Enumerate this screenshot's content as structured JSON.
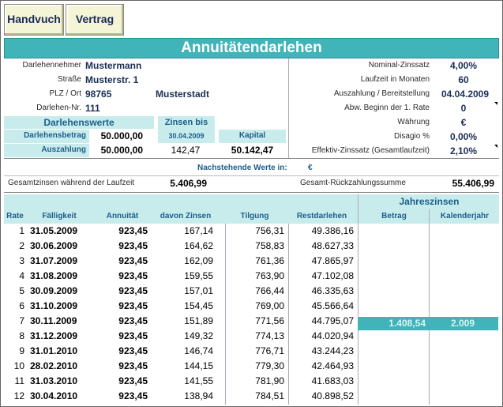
{
  "toolbar": {
    "handbuch_label": "Handvuch",
    "vertrag_label": "Vertrag"
  },
  "title": "Annuitätendarlehen",
  "borrower": {
    "name_label": "Darlehennehmer",
    "name": "Mustermann",
    "street_label": "Straße",
    "street": "Musterstr. 1",
    "city_label": "PLZ / Ort",
    "zip": "98765",
    "city": "Musterstadt",
    "loan_no_label": "Darlehen-Nr.",
    "loan_no": "111"
  },
  "conditions": {
    "rate_label": "Nominal-Zinssatz",
    "rate": "4,00%",
    "term_label": "Laufzeit in Monaten",
    "term": "60",
    "payout_label": "Auszahlung / Bereitstellung",
    "payout_date": "04.04.2009",
    "deviation_label": "Abw. Beginn der 1. Rate",
    "deviation": "0",
    "currency_label": "Währung",
    "currency": "€",
    "disagio_label": "Disagio %",
    "disagio": "0,00%",
    "effective_label": "Effektiv-Zinssatz (Gesamtlaufzeit)",
    "effective": "2,10%"
  },
  "loan_values": {
    "header": "Darlehenswerte",
    "interest_until_label": "Zinsen bis",
    "interest_until_date": "30.04.2009",
    "capital_label": "Kapital",
    "amount_label": "Darlehensbetrag",
    "amount": "50.000,00",
    "payout_label": "Auszahlung",
    "payout": "50.000,00",
    "interest": "142,47",
    "capital": "50.142,47"
  },
  "summary": {
    "note": "Nachstehende Werte in:",
    "note_currency": "€",
    "total_interest_label": "Gesamtzinsen während der Laufzeit",
    "total_interest": "5.406,99",
    "total_repayment_label": "Gesamt-Rückzahlungssumme",
    "total_repayment": "55.406,99"
  },
  "table": {
    "group_header": "Jahreszinsen",
    "headers": [
      "Rate",
      "Fälligkeit",
      "Annuität",
      "davon Zinsen",
      "Tilgung",
      "Restdarlehen",
      "Betrag",
      "Kalenderjahr"
    ],
    "rows": [
      [
        "1",
        "31.05.2009",
        "923,45",
        "167,14",
        "756,31",
        "49.386,16"
      ],
      [
        "2",
        "30.06.2009",
        "923,45",
        "164,62",
        "758,83",
        "48.627,33"
      ],
      [
        "3",
        "31.07.2009",
        "923,45",
        "162,09",
        "761,36",
        "47.865,97"
      ],
      [
        "4",
        "31.08.2009",
        "923,45",
        "159,55",
        "763,90",
        "47.102,08"
      ],
      [
        "5",
        "30.09.2009",
        "923,45",
        "157,01",
        "766,44",
        "46.335,63"
      ],
      [
        "6",
        "31.10.2009",
        "923,45",
        "154,45",
        "769,00",
        "45.566,64"
      ],
      [
        "7",
        "30.11.2009",
        "923,45",
        "151,89",
        "771,56",
        "44.795,07"
      ],
      [
        "8",
        "31.12.2009",
        "923,45",
        "149,32",
        "774,13",
        "44.020,94"
      ],
      [
        "9",
        "31.01.2010",
        "923,45",
        "146,74",
        "776,71",
        "43.244,23"
      ],
      [
        "10",
        "28.02.2010",
        "923,45",
        "144,15",
        "779,30",
        "42.464,93"
      ],
      [
        "11",
        "31.03.2010",
        "923,45",
        "141,55",
        "781,90",
        "41.683,03"
      ],
      [
        "12",
        "30.04.2010",
        "923,45",
        "138,94",
        "784,51",
        "40.898,52"
      ]
    ],
    "year_interest": {
      "amount": "1.408,54",
      "year": "2.009"
    }
  },
  "colors": {
    "accent": "#40b4b8",
    "light_accent": "#c8ecec",
    "header_text": "#1c5e8c"
  }
}
